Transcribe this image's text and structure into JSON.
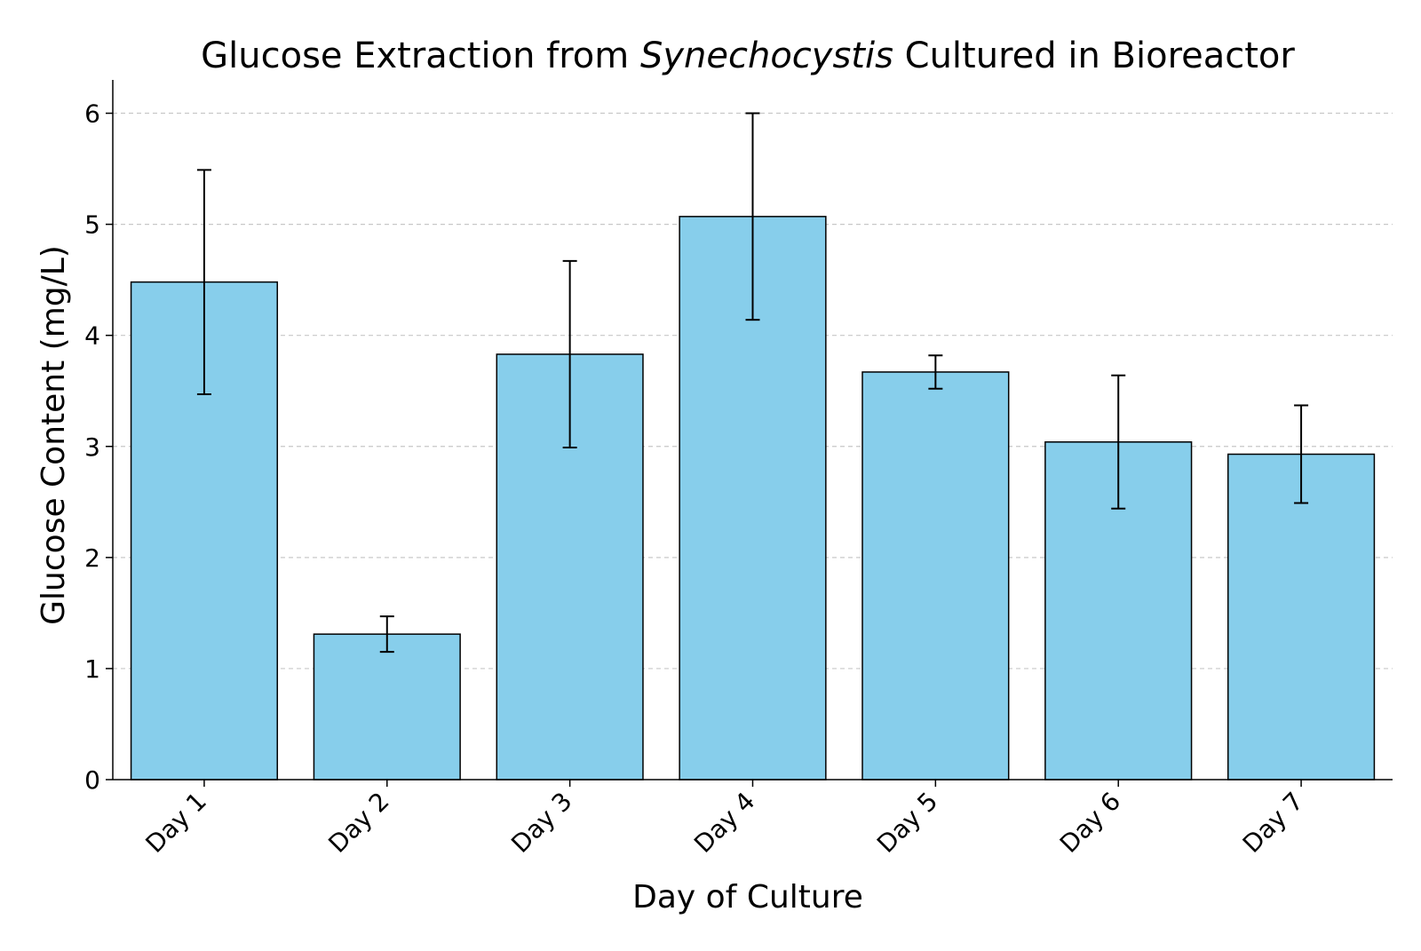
{
  "chart_data": {
    "type": "bar",
    "title": {
      "prefix": "Glucose Extraction from ",
      "italic": "Synechocystis",
      "suffix": " Cultured in Bioreactor"
    },
    "xlabel": "Day of Culture",
    "ylabel": "Glucose Content (mg/L)",
    "categories": [
      "Day 1",
      "Day 2",
      "Day 3",
      "Day 4",
      "Day 5",
      "Day 6",
      "Day 7"
    ],
    "values": [
      4.48,
      1.31,
      3.83,
      5.07,
      3.67,
      3.04,
      2.93
    ],
    "errors": [
      1.01,
      0.16,
      0.84,
      0.93,
      0.15,
      0.6,
      0.44
    ],
    "ylim": [
      0,
      6.3
    ],
    "yticks": [
      0,
      1,
      2,
      3,
      4,
      5,
      6
    ],
    "grid": "y-dashed",
    "bar_color": "#87ceeb",
    "bar_edge_color": "#000000",
    "grid_color": "#c8c8c8"
  }
}
